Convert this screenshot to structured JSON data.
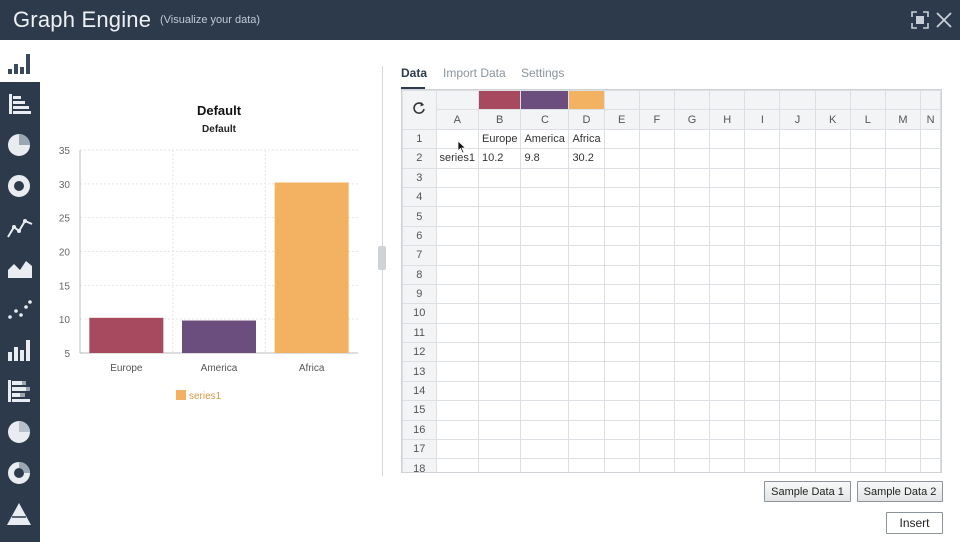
{
  "app": {
    "title": "Graph Engine",
    "subtitle": "(Visualize your data)"
  },
  "colors": {
    "titlebar": "#2d3a4b",
    "europe": "#a84a5f",
    "america": "#6b4e7d",
    "africa": "#f3b262",
    "series": "#f3b262"
  },
  "sidebar": {
    "top_icon": "column-chart-icon",
    "items": [
      {
        "icon": "horizontal-bar-chart-icon"
      },
      {
        "icon": "pie-chart-icon"
      },
      {
        "icon": "donut-chart-icon"
      },
      {
        "icon": "line-chart-icon"
      },
      {
        "icon": "area-chart-icon"
      },
      {
        "icon": "scatter-chart-icon"
      },
      {
        "icon": "column-chart-icon"
      },
      {
        "icon": "stacked-bar-chart-icon"
      },
      {
        "icon": "pie-chart-icon"
      },
      {
        "icon": "donut-chart-icon"
      },
      {
        "icon": "pyramid-chart-icon"
      }
    ]
  },
  "tabs": [
    {
      "label": "Data",
      "active": true
    },
    {
      "label": "Import Data",
      "active": false
    },
    {
      "label": "Settings",
      "active": false
    }
  ],
  "grid": {
    "columns": [
      "A",
      "B",
      "C",
      "D",
      "E",
      "F",
      "G",
      "H",
      "I",
      "J",
      "K",
      "L",
      "M",
      "N"
    ],
    "swatches": [
      "",
      "#a84a5f",
      "#6b4e7d",
      "#f3b262",
      "",
      "",
      "",
      "",
      "",
      "",
      "",
      "",
      "",
      ""
    ],
    "rows": [
      [
        "",
        "Europe",
        "America",
        "Africa"
      ],
      [
        "series1",
        "10.2",
        "9.8",
        "30.2"
      ]
    ],
    "row_count": 18
  },
  "buttons": {
    "sample1": "Sample Data 1",
    "sample2": "Sample Data 2",
    "insert": "Insert"
  },
  "chart_data": {
    "type": "bar",
    "title": "Default",
    "subtitle": "Default",
    "categories": [
      "Europe",
      "America",
      "Africa"
    ],
    "series": [
      {
        "name": "series1",
        "values": [
          10.2,
          9.8,
          30.2
        ]
      }
    ],
    "bar_colors": [
      "#a84a5f",
      "#6b4e7d",
      "#f3b262"
    ],
    "ylim": [
      5,
      35
    ],
    "yticks": [
      5,
      10,
      15,
      20,
      25,
      30,
      35
    ],
    "xlabel": "",
    "ylabel": "",
    "grid": true,
    "legend": "bottom"
  }
}
